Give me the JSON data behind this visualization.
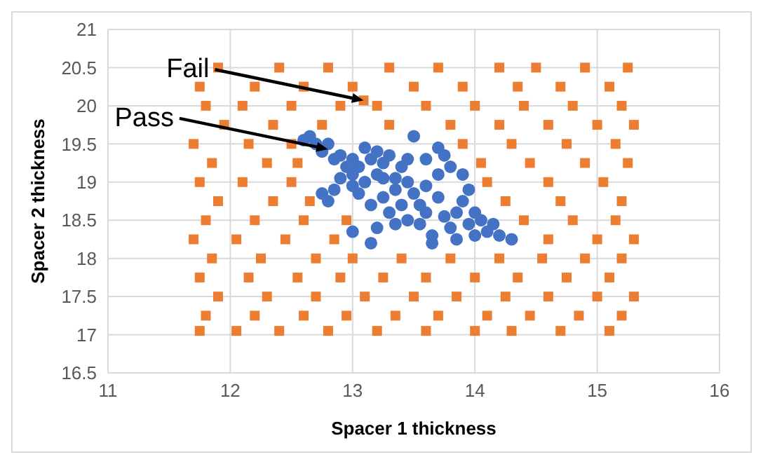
{
  "chart_data": {
    "type": "scatter",
    "xlabel": "Spacer 1 thickness",
    "ylabel": "Spacer 2 thickness",
    "xlim": [
      11,
      16
    ],
    "xticks": [
      11,
      12,
      13,
      14,
      15,
      16
    ],
    "ylim": [
      16.5,
      21
    ],
    "yticks": [
      16.5,
      17,
      17.5,
      18,
      18.5,
      19,
      19.5,
      20,
      20.5,
      21
    ],
    "grid": true,
    "legend": false,
    "annotations": [
      {
        "text": "Fail",
        "x": 13.09,
        "y": 20.07
      },
      {
        "text": "Pass",
        "x": 12.8,
        "y": 19.43
      }
    ],
    "series": [
      {
        "color": "#ed7d31",
        "marker": "square",
        "x": [
          13.09,
          11.9,
          12.4,
          12.8,
          13.3,
          13.7,
          14.2,
          14.5,
          14.9,
          15.25,
          11.75,
          12.2,
          12.6,
          13.0,
          13.5,
          13.9,
          14.35,
          14.7,
          15.1,
          11.8,
          12.1,
          12.5,
          12.9,
          13.2,
          13.6,
          14.0,
          14.4,
          14.8,
          15.2,
          11.95,
          12.35,
          12.75,
          13.3,
          13.8,
          14.2,
          14.6,
          15.0,
          15.3,
          11.7,
          12.15,
          12.5,
          13.9,
          14.3,
          14.75,
          15.15,
          11.85,
          12.3,
          12.55,
          14.05,
          14.45,
          14.9,
          15.25,
          11.75,
          12.1,
          12.5,
          14.1,
          14.6,
          15.05,
          11.9,
          12.35,
          12.65,
          14.25,
          14.7,
          15.2,
          11.8,
          12.2,
          12.6,
          12.95,
          14.4,
          14.8,
          15.15,
          11.7,
          12.05,
          12.45,
          12.85,
          14.6,
          15.0,
          15.3,
          11.85,
          12.25,
          12.7,
          13.0,
          13.4,
          13.8,
          14.2,
          14.55,
          14.9,
          15.2,
          11.75,
          12.15,
          12.55,
          12.9,
          13.25,
          13.6,
          14.0,
          14.35,
          14.75,
          15.1,
          11.9,
          12.3,
          12.7,
          13.1,
          13.5,
          13.85,
          14.25,
          14.6,
          15.0,
          15.3,
          11.8,
          12.2,
          12.6,
          12.95,
          13.35,
          13.7,
          14.1,
          14.45,
          14.85,
          15.2,
          11.75,
          12.05,
          12.4,
          12.8,
          13.2,
          13.6,
          14.0,
          14.3,
          14.7,
          15.1
        ],
        "values": [
          20.07,
          20.5,
          20.5,
          20.5,
          20.5,
          20.5,
          20.5,
          20.5,
          20.5,
          20.5,
          20.25,
          20.25,
          20.25,
          20.25,
          20.25,
          20.25,
          20.25,
          20.25,
          20.25,
          20.0,
          20.0,
          20.0,
          20.0,
          20.0,
          20.0,
          20.0,
          20.0,
          20.0,
          20.0,
          19.75,
          19.75,
          19.75,
          19.75,
          19.75,
          19.75,
          19.75,
          19.75,
          19.75,
          19.5,
          19.5,
          19.5,
          19.5,
          19.5,
          19.5,
          19.5,
          19.25,
          19.25,
          19.25,
          19.25,
          19.25,
          19.25,
          19.25,
          19.0,
          19.0,
          19.0,
          19.0,
          19.0,
          19.0,
          18.75,
          18.75,
          18.75,
          18.75,
          18.75,
          18.75,
          18.5,
          18.5,
          18.5,
          18.5,
          18.5,
          18.5,
          18.5,
          18.25,
          18.25,
          18.25,
          18.25,
          18.25,
          18.25,
          18.25,
          18.0,
          18.0,
          18.0,
          18.0,
          18.0,
          18.0,
          18.0,
          18.0,
          18.0,
          18.0,
          17.75,
          17.75,
          17.75,
          17.75,
          17.75,
          17.75,
          17.75,
          17.75,
          17.75,
          17.75,
          17.5,
          17.5,
          17.5,
          17.5,
          17.5,
          17.5,
          17.5,
          17.5,
          17.5,
          17.5,
          17.25,
          17.25,
          17.25,
          17.25,
          17.25,
          17.25,
          17.25,
          17.25,
          17.25,
          17.25,
          17.05,
          17.05,
          17.05,
          17.05,
          17.05,
          17.05,
          17.05,
          17.05,
          17.05,
          17.05
        ]
      },
      {
        "color": "#4472c4",
        "marker": "circle",
        "x": [
          12.6,
          12.65,
          12.7,
          12.75,
          12.85,
          12.8,
          12.9,
          13.0,
          13.05,
          13.1,
          13.2,
          13.15,
          13.25,
          13.0,
          12.9,
          12.75,
          12.85,
          13.0,
          13.1,
          13.2,
          13.3,
          13.4,
          13.5,
          13.6,
          13.7,
          13.75,
          13.8,
          13.9,
          13.45,
          13.35,
          13.25,
          13.3,
          13.2,
          13.15,
          13.4,
          13.5,
          13.55,
          13.6,
          13.45,
          13.35,
          13.6,
          13.7,
          13.75,
          13.8,
          13.85,
          13.9,
          13.95,
          14.0,
          14.05,
          14.1,
          14.15,
          14.2,
          14.3,
          13.95,
          13.85,
          13.65,
          13.55,
          14.0,
          13.7,
          13.65,
          12.95,
          13.05,
          13.35,
          13.45,
          13.15,
          12.8,
          13.25,
          13.0
        ],
        "values": [
          19.55,
          19.6,
          19.5,
          19.4,
          19.3,
          19.5,
          19.35,
          19.3,
          19.2,
          19.45,
          19.4,
          19.3,
          19.25,
          19.1,
          19.05,
          18.85,
          18.9,
          18.95,
          19.0,
          19.1,
          19.35,
          19.2,
          19.6,
          19.3,
          19.45,
          19.35,
          19.2,
          19.1,
          19.0,
          18.9,
          18.8,
          18.6,
          18.4,
          18.2,
          18.7,
          18.85,
          18.7,
          18.95,
          18.5,
          18.45,
          18.6,
          18.8,
          18.55,
          18.4,
          18.6,
          18.75,
          18.45,
          18.6,
          18.5,
          18.35,
          18.45,
          18.3,
          18.25,
          18.9,
          18.25,
          18.3,
          18.45,
          18.3,
          19.1,
          18.2,
          19.2,
          18.85,
          19.05,
          19.3,
          18.7,
          18.75,
          19.05,
          18.35
        ]
      }
    ]
  }
}
